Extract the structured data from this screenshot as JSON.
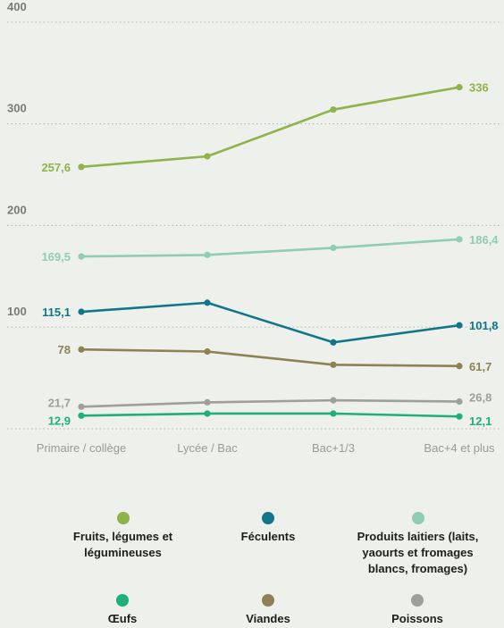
{
  "chart_data": {
    "type": "line",
    "categories": [
      "Primaire / collège",
      "Lycée / Bac",
      "Bac+1/3",
      "Bac+4 et plus"
    ],
    "ylim": [
      0,
      400
    ],
    "yticks": [
      "100",
      "200",
      "300",
      "400"
    ],
    "grid": true,
    "legend_position": "bottom",
    "series": [
      {
        "name": "Fruits, légumes et légumineuses",
        "color": "#8db34a",
        "values": [
          257.6,
          268,
          314,
          336
        ],
        "labels": [
          "257,6",
          "",
          "",
          "336"
        ]
      },
      {
        "name": "Produits laitiers (laits, yaourts et fromages blancs, fromages)",
        "color": "#8fcdb4",
        "values": [
          169.5,
          171,
          178,
          186.4
        ],
        "labels": [
          "169,5",
          "",
          "",
          "186,4"
        ]
      },
      {
        "name": "Féculents",
        "color": "#12768a",
        "values": [
          115.1,
          124,
          85,
          101.8
        ],
        "labels": [
          "115,1",
          "",
          "",
          "101,8"
        ]
      },
      {
        "name": "Viandes",
        "color": "#8c8255",
        "values": [
          78,
          76,
          63,
          61.7
        ],
        "labels": [
          "78",
          "",
          "",
          "61,7"
        ]
      },
      {
        "name": "Poissons",
        "color": "#9e9e9e",
        "values": [
          21.7,
          26,
          28,
          26.8
        ],
        "labels": [
          "21,7",
          "",
          "",
          "26,8"
        ]
      },
      {
        "name": "Œufs",
        "color": "#1fae7c",
        "values": [
          12.9,
          15,
          15,
          12.1
        ],
        "labels": [
          "12,9",
          "",
          "",
          "12,1"
        ]
      }
    ]
  },
  "legend": [
    {
      "label": "Fruits, légumes et légumineuses",
      "color": "#8db34a"
    },
    {
      "label": "Féculents",
      "color": "#12768a"
    },
    {
      "label": "Produits laitiers (laits, yaourts et fromages blancs, fromages)",
      "color": "#8fcdb4"
    },
    {
      "label": "Œufs",
      "color": "#1fae7c"
    },
    {
      "label": "Viandes",
      "color": "#8c8255"
    },
    {
      "label": "Poissons",
      "color": "#9e9e9e"
    }
  ]
}
